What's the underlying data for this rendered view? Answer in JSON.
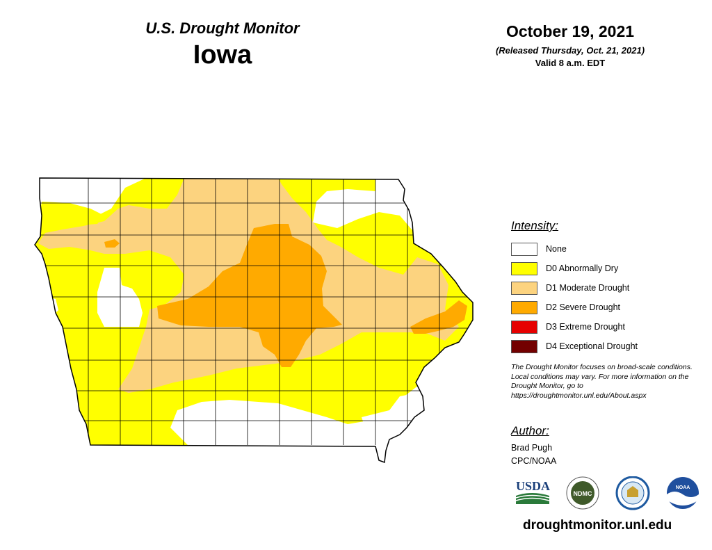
{
  "header": {
    "title": "U.S. Drought Monitor",
    "state": "Iowa",
    "date": "October 19, 2021",
    "released": "(Released Thursday, Oct. 21, 2021)",
    "valid": "Valid 8 a.m. EDT"
  },
  "legend": {
    "title": "Intensity:",
    "items": [
      {
        "label": "None",
        "color": "#ffffff"
      },
      {
        "label": "D0 Abnormally Dry",
        "color": "#ffff00"
      },
      {
        "label": "D1 Moderate Drought",
        "color": "#fcd37f"
      },
      {
        "label": "D2 Severe Drought",
        "color": "#ffaa00"
      },
      {
        "label": "D3 Extreme Drought",
        "color": "#e60000"
      },
      {
        "label": "D4 Exceptional Drought",
        "color": "#730000"
      }
    ]
  },
  "disclaimer": "The Drought Monitor focuses on broad-scale conditions. Local conditions may vary. For more information on the Drought Monitor, go to https://droughtmonitor.unl.edu/About.aspx",
  "author": {
    "title": "Author:",
    "name": "Brad Pugh",
    "org": "CPC/NOAA"
  },
  "logos": [
    {
      "name": "usda-logo",
      "text": "USDA"
    },
    {
      "name": "ndmc-logo",
      "text": "NDMC"
    },
    {
      "name": "commerce-seal-logo",
      "text": ""
    },
    {
      "name": "noaa-logo",
      "text": "NOAA"
    }
  ],
  "url": "droughtmonitor.unl.edu"
}
